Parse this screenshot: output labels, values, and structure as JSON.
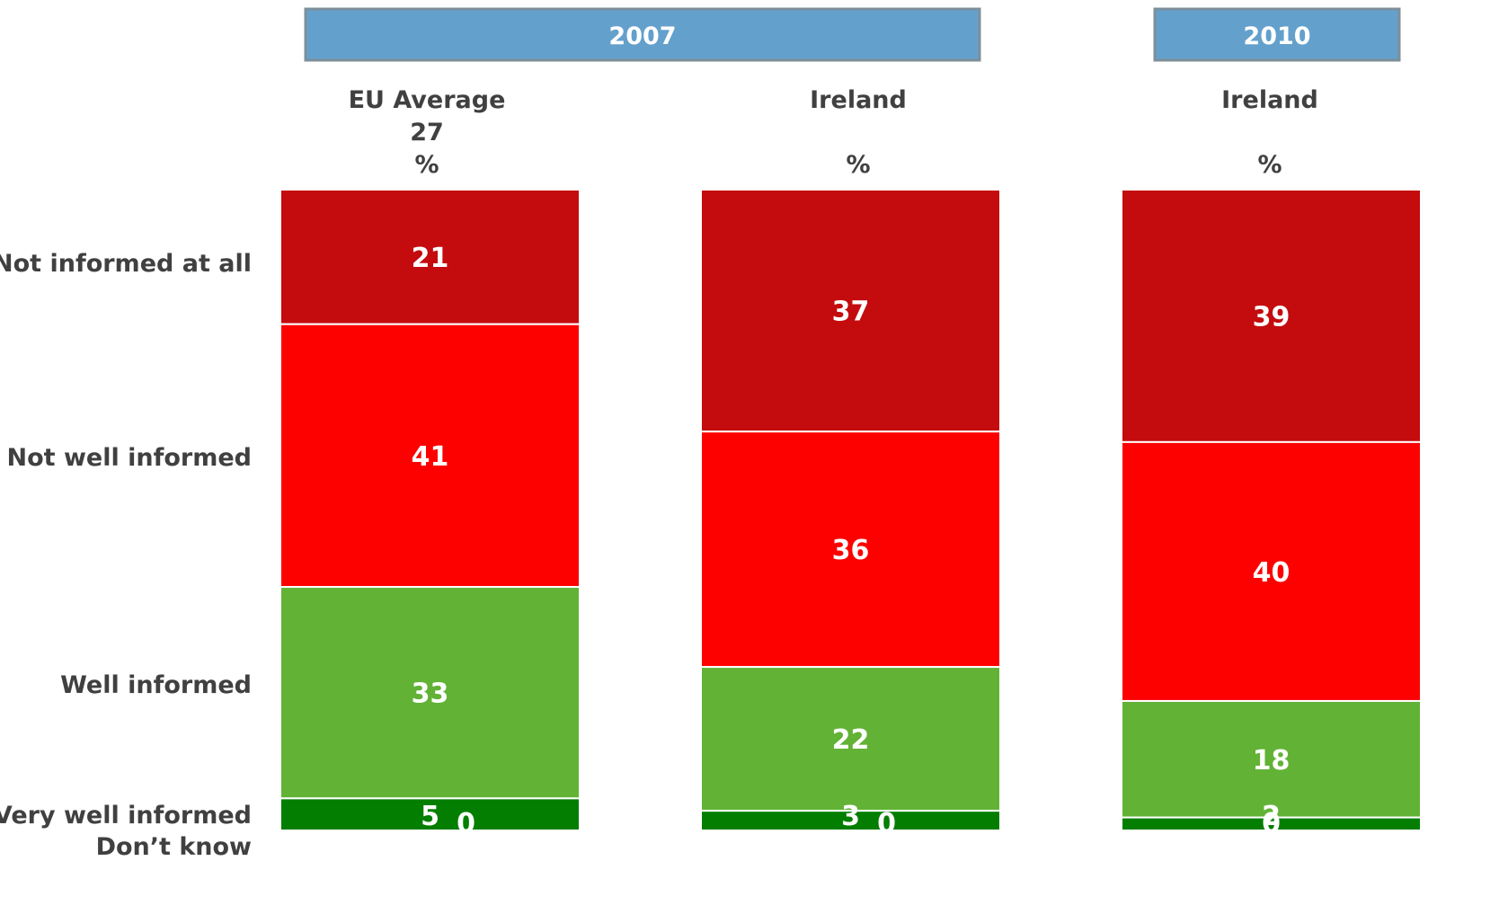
{
  "chart_data": {
    "type": "bar",
    "stacked": true,
    "groups": [
      {
        "label": "2007",
        "columns": [
          0,
          1
        ]
      },
      {
        "label": "2010",
        "columns": [
          2
        ]
      }
    ],
    "categories": [
      {
        "name": "EU Average",
        "subtitle": "27",
        "unit": "%"
      },
      {
        "name": "Ireland",
        "subtitle": "",
        "unit": "%"
      },
      {
        "name": "Ireland",
        "subtitle": "",
        "unit": "%"
      }
    ],
    "series": [
      {
        "name": "Not informed at all",
        "color": "#c40b0e",
        "values": [
          21,
          37,
          39
        ]
      },
      {
        "name": "Not well informed",
        "color": "#fd0000",
        "values": [
          41,
          36,
          40
        ]
      },
      {
        "name": "Well informed",
        "color": "#62b236",
        "values": [
          33,
          22,
          18
        ]
      },
      {
        "name": "Very well informed",
        "color": "#037e01",
        "values": [
          5,
          3,
          2
        ]
      },
      {
        "name": "Don’t know",
        "color": "#037e01",
        "values": [
          0,
          0,
          0
        ]
      }
    ],
    "data_labels": [
      [
        "21",
        "37",
        "39"
      ],
      [
        "41",
        "36",
        "40"
      ],
      [
        "33",
        "22",
        "18"
      ],
      [
        "5",
        "3",
        "2"
      ],
      [
        "0",
        "0",
        "0"
      ]
    ],
    "legend": "left",
    "grid": false,
    "colors": {
      "group_header": "#64a0cc",
      "group_header_border": "#7d8f9a",
      "text": "#404040",
      "bar_label": "#ffffff"
    }
  }
}
